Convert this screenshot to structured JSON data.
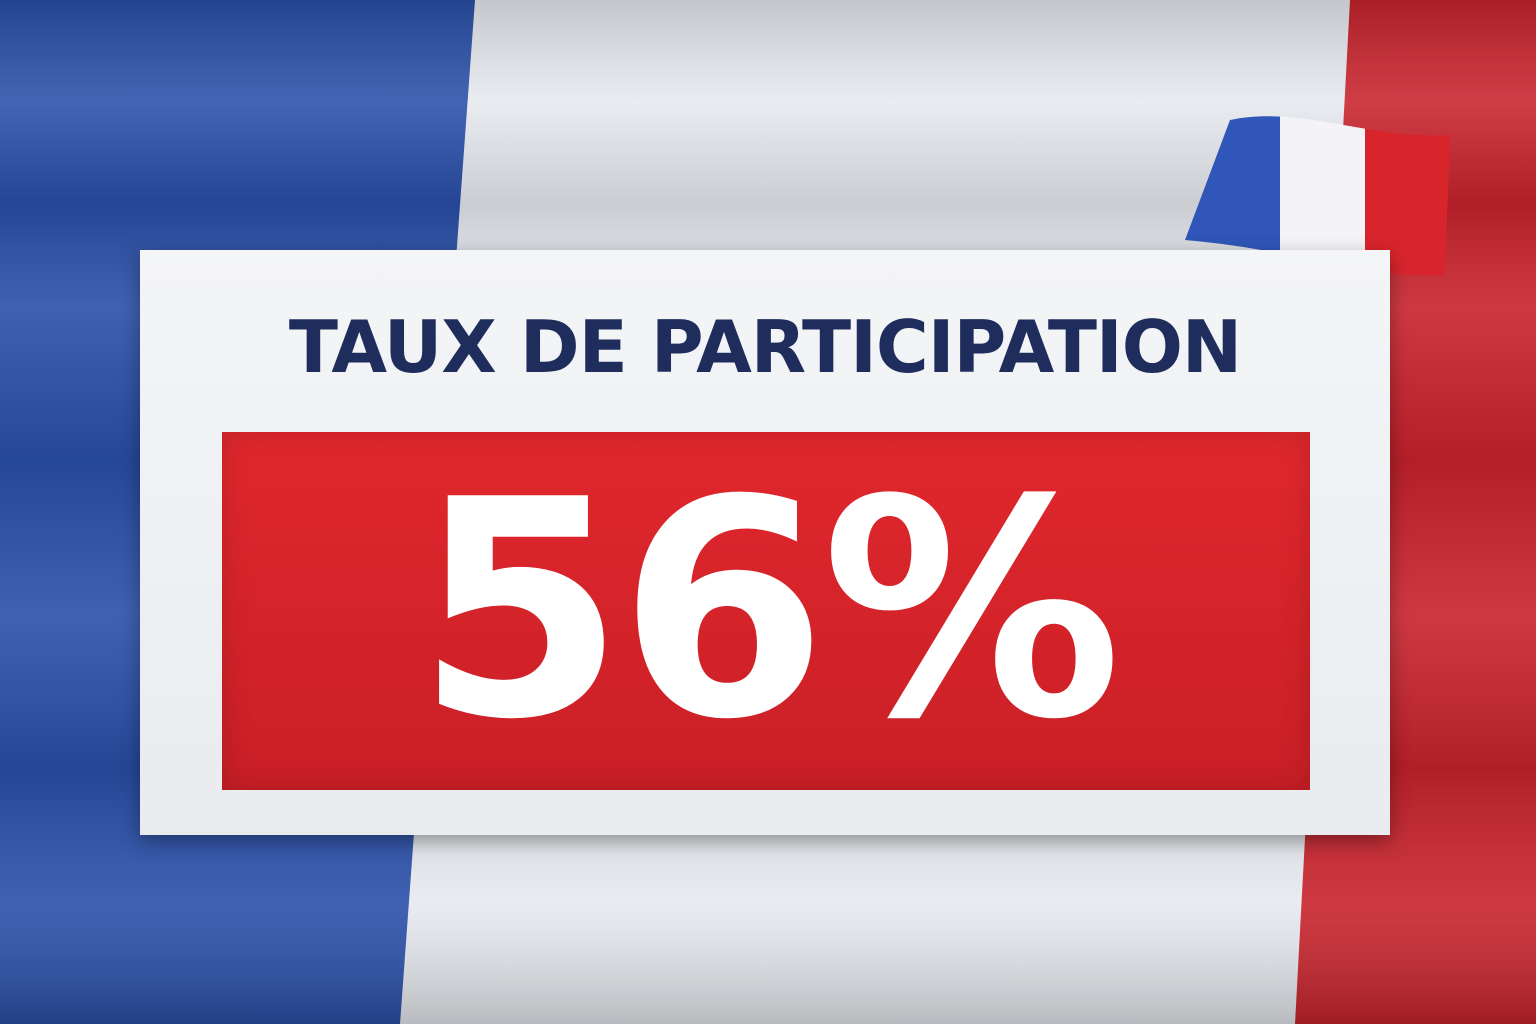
{
  "headline": "TAUX DE PARTICIPATION",
  "value": "56%",
  "value_percent": 56,
  "colors": {
    "flag_blue": "#2a4fa8",
    "flag_white": "#e8ebf0",
    "flag_red": "#c8232c",
    "title_navy": "#1f2d5c",
    "value_box_red": "#d8262c",
    "value_text": "#ffffff"
  },
  "icons": [
    "french-flag-background",
    "french-flag-icon"
  ]
}
